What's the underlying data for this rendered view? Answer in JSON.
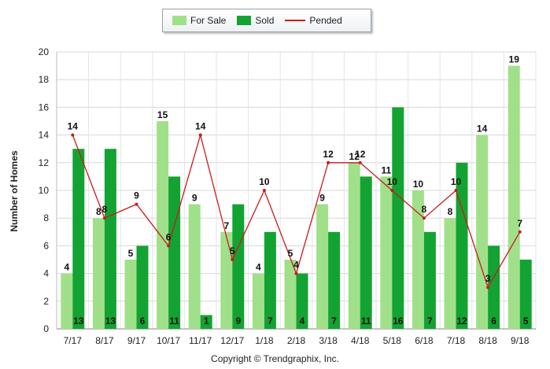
{
  "chart_data": {
    "type": "bar",
    "categories": [
      "7/17",
      "8/17",
      "9/17",
      "10/17",
      "11/17",
      "12/17",
      "1/18",
      "2/18",
      "3/18",
      "4/18",
      "5/18",
      "6/18",
      "7/18",
      "8/18",
      "9/18"
    ],
    "series": [
      {
        "name": "For Sale",
        "kind": "bar",
        "color": "#a1e08a",
        "values": [
          4,
          8,
          5,
          15,
          9,
          7,
          4,
          5,
          9,
          12,
          11,
          10,
          8,
          14,
          19
        ]
      },
      {
        "name": "Sold",
        "kind": "bar",
        "color": "#13a332",
        "values": [
          13,
          13,
          6,
          11,
          1,
          9,
          7,
          4,
          7,
          11,
          16,
          7,
          12,
          6,
          5
        ]
      },
      {
        "name": "Pended",
        "kind": "line",
        "color": "#cc1a1a",
        "values": [
          14,
          8,
          9,
          6,
          14,
          5,
          10,
          4,
          12,
          12,
          10,
          8,
          10,
          3,
          7
        ]
      }
    ],
    "ylabel": "Number of Homes",
    "xlabel": "",
    "ylim": [
      0,
      20
    ],
    "yticks": [
      0,
      2,
      4,
      6,
      8,
      10,
      12,
      14,
      16,
      18,
      20
    ],
    "grid": true,
    "legend_position": "top-center"
  },
  "legend": {
    "items": [
      {
        "label": "For Sale",
        "color": "#a1e08a"
      },
      {
        "label": "Sold",
        "color": "#13a332"
      },
      {
        "label": "Pended",
        "color": "#cc1a1a"
      }
    ]
  },
  "copyright": "Copyright © Trendgraphix, Inc."
}
